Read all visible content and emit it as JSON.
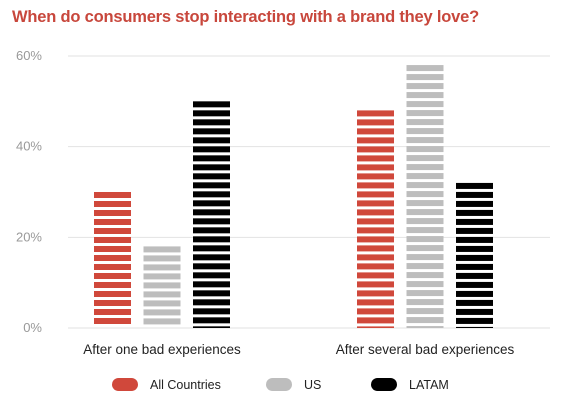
{
  "chart_data": {
    "type": "bar",
    "title": "When do consumers stop interacting with a brand they love?",
    "categories": [
      "After one bad experiences",
      "After several bad experiences"
    ],
    "series": [
      {
        "name": "All Countries",
        "values": [
          30,
          48
        ]
      },
      {
        "name": "US",
        "values": [
          18,
          58
        ]
      },
      {
        "name": "LATAM",
        "values": [
          50,
          32
        ]
      }
    ],
    "y_ticks": [
      "0%",
      "20%",
      "40%",
      "60%"
    ],
    "ylim": [
      0,
      60
    ],
    "y_unit": "%",
    "grid": true,
    "legend": "bottom",
    "colors": {
      "title": "#c8473c",
      "series": [
        "#d0483b",
        "#bdbdbd",
        "#000000"
      ],
      "grid": "#e2e2e2"
    }
  }
}
